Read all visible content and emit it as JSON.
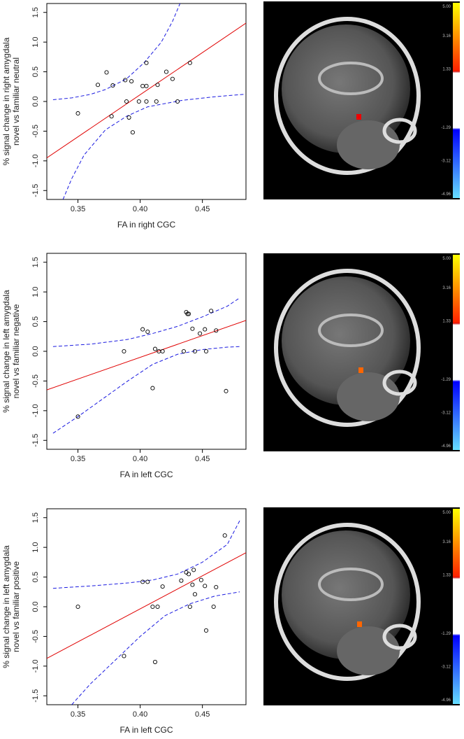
{
  "chart_data": [
    {
      "type": "scatter",
      "ylabel": [
        "% signal change in right amygdala",
        "novel vs familiar neutral"
      ],
      "xlabel": "FA in right CGC",
      "xlim": [
        0.325,
        0.485
      ],
      "ylim": [
        -1.65,
        1.65
      ],
      "xticks": [
        0.35,
        {
          "value": 0.4,
          "label": "0.40"
        },
        0.45
      ],
      "yticks": [
        -1.5,
        {
          "value": -1,
          "label": "-1.0"
        },
        -0.5,
        {
          "value": 0,
          "label": "0.0"
        },
        0.5,
        {
          "value": 1,
          "label": "1.0"
        },
        1.5
      ],
      "x": [
        0.35,
        0.366,
        0.373,
        0.378,
        0.377,
        0.388,
        0.393,
        0.389,
        0.391,
        0.394,
        0.399,
        0.402,
        0.405,
        0.405,
        0.405,
        0.413,
        0.414,
        0.421,
        0.426,
        0.43,
        0.44
      ],
      "y": [
        -0.2,
        0.28,
        0.49,
        0.27,
        -0.25,
        0.36,
        0.34,
        0,
        -0.27,
        -0.52,
        0,
        0.26,
        0.26,
        0.65,
        0,
        0,
        0.28,
        0.5,
        0.38,
        0,
        0.65
      ],
      "point_color": "#000000",
      "fit_color": "#e00000",
      "band_color": "#1a1ae0",
      "fit_x": [
        0.325,
        0.485
      ],
      "fit_y": [
        -0.95,
        1.32
      ],
      "upper_x": [
        0.33,
        0.345,
        0.36,
        0.372,
        0.389,
        0.403,
        0.417,
        0.426,
        0.432
      ],
      "upper_y": [
        0.03,
        0.06,
        0.12,
        0.2,
        0.38,
        0.65,
        1.0,
        1.35,
        1.65
      ],
      "lower_x": [
        0.338,
        0.345,
        0.355,
        0.372,
        0.389,
        0.406,
        0.434,
        0.46,
        0.483
      ],
      "lower_y": [
        -1.65,
        -1.3,
        -0.9,
        -0.48,
        -0.25,
        -0.09,
        0.02,
        0.08,
        0.12
      ]
    },
    {
      "type": "scatter",
      "ylabel": [
        "% signal change in left amygdala",
        "novel vs familiar negative"
      ],
      "xlabel": "FA in left CGC",
      "xlim": [
        0.325,
        0.485
      ],
      "ylim": [
        -1.65,
        1.65
      ],
      "xticks": [
        0.35,
        {
          "value": 0.4,
          "label": "0.40"
        },
        0.45
      ],
      "yticks": [
        -1.5,
        {
          "value": -1,
          "label": "-1.0"
        },
        -0.5,
        {
          "value": 0,
          "label": "0.0"
        },
        0.5,
        {
          "value": 1,
          "label": "1.0"
        },
        1.5
      ],
      "x": [
        0.35,
        0.387,
        0.402,
        0.406,
        0.41,
        0.412,
        0.415,
        0.418,
        0.435,
        0.437,
        0.438,
        0.439,
        0.442,
        0.444,
        0.448,
        0.452,
        0.453,
        0.457,
        0.461,
        0.469
      ],
      "y": [
        -1.1,
        0,
        0.37,
        0.33,
        -0.62,
        0.04,
        0,
        0,
        0,
        0.66,
        0.63,
        0.63,
        0.38,
        0,
        0.3,
        0.37,
        0,
        0.68,
        0.35,
        -0.67
      ],
      "point_color": "#000000",
      "fit_color": "#e00000",
      "band_color": "#1a1ae0",
      "fit_x": [
        0.325,
        0.485
      ],
      "fit_y": [
        -0.65,
        0.52
      ],
      "upper_x": [
        0.33,
        0.36,
        0.39,
        0.41,
        0.43,
        0.45,
        0.47,
        0.48
      ],
      "upper_y": [
        0.08,
        0.12,
        0.2,
        0.3,
        0.42,
        0.58,
        0.76,
        0.9
      ],
      "lower_x": [
        0.33,
        0.35,
        0.37,
        0.39,
        0.41,
        0.43,
        0.45,
        0.47,
        0.48
      ],
      "lower_y": [
        -1.38,
        -1.1,
        -0.8,
        -0.5,
        -0.22,
        -0.05,
        0.03,
        0.07,
        0.08
      ]
    },
    {
      "type": "scatter",
      "ylabel": [
        "% signal change in left amygdala",
        "novel vs familiar positive"
      ],
      "xlabel": "FA in left CGC",
      "xlim": [
        0.325,
        0.485
      ],
      "ylim": [
        -1.65,
        1.65
      ],
      "xticks": [
        0.35,
        {
          "value": 0.4,
          "label": "0.40"
        },
        0.45
      ],
      "yticks": [
        -1.5,
        {
          "value": -1,
          "label": "-1.0"
        },
        -0.5,
        {
          "value": 0,
          "label": "0.0"
        },
        0.5,
        {
          "value": 1,
          "label": "1.0"
        },
        1.5
      ],
      "x": [
        0.35,
        0.387,
        0.402,
        0.406,
        0.41,
        0.412,
        0.414,
        0.418,
        0.433,
        0.437,
        0.439,
        0.44,
        0.442,
        0.443,
        0.444,
        0.449,
        0.452,
        0.453,
        0.459,
        0.461,
        0.468
      ],
      "y": [
        0,
        -0.83,
        0.42,
        0.42,
        0,
        -0.93,
        0,
        0.34,
        0.44,
        0.58,
        0.55,
        0,
        0.37,
        0.62,
        0.21,
        0.45,
        0.35,
        -0.4,
        0,
        0.33,
        1.2
      ],
      "point_color": "#000000",
      "fit_color": "#e00000",
      "band_color": "#1a1ae0",
      "fit_x": [
        0.325,
        0.485
      ],
      "fit_y": [
        -0.87,
        0.91
      ],
      "upper_x": [
        0.33,
        0.36,
        0.39,
        0.41,
        0.43,
        0.45,
        0.47,
        0.48
      ],
      "upper_y": [
        0.31,
        0.35,
        0.4,
        0.45,
        0.55,
        0.75,
        1.05,
        1.45
      ],
      "lower_x": [
        0.345,
        0.36,
        0.38,
        0.4,
        0.42,
        0.44,
        0.46,
        0.48
      ],
      "lower_y": [
        -1.65,
        -1.3,
        -0.9,
        -0.5,
        -0.15,
        0.05,
        0.18,
        0.25
      ]
    }
  ],
  "brain_panels": [
    {
      "colorbar_labels": [
        "5.00",
        "3.16",
        "1.33",
        "-1.29",
        "-3.12",
        "-4.96"
      ]
    },
    {
      "colorbar_labels": [
        "5.00",
        "3.16",
        "1.33",
        "-1.29",
        "-3.12",
        "-4.96"
      ]
    },
    {
      "colorbar_labels": [
        "5.00",
        "3.16",
        "1.33",
        "-1.29",
        "-3.12",
        "-4.96"
      ]
    }
  ]
}
